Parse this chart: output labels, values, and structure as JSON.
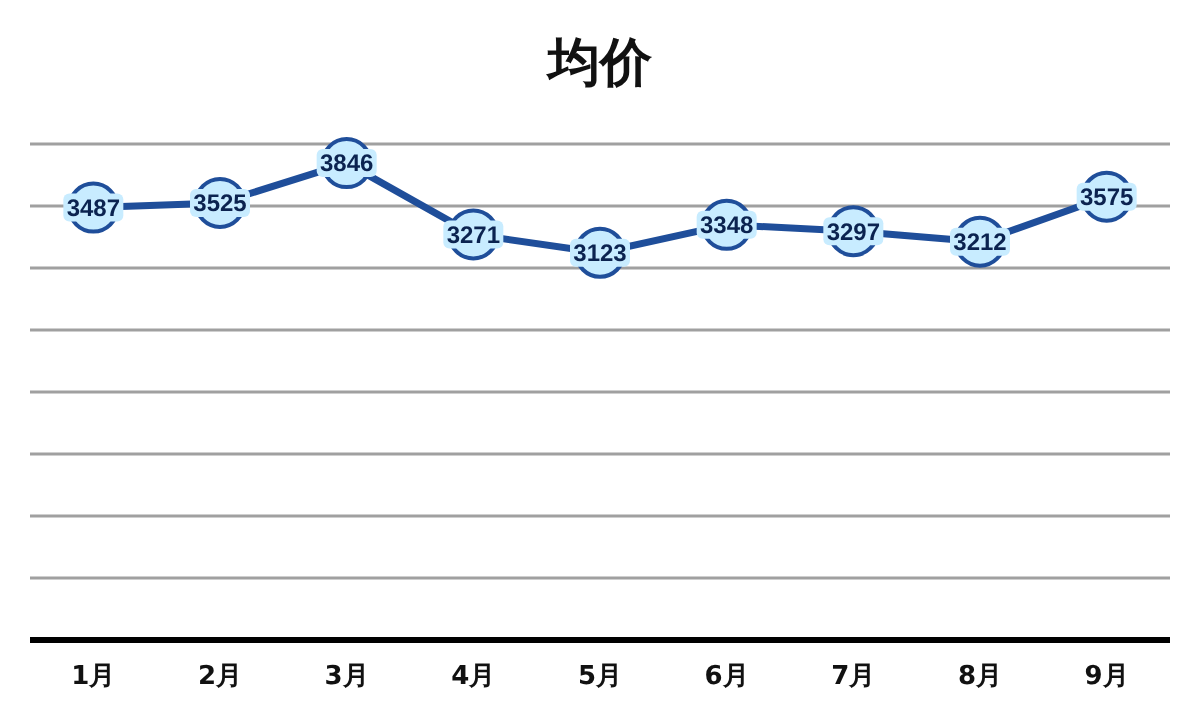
{
  "chart_data": {
    "type": "line",
    "title": "均价",
    "categories": [
      "1月",
      "2月",
      "3月",
      "4月",
      "5月",
      "6月",
      "7月",
      "8月",
      "9月"
    ],
    "series": [
      {
        "color": "#1f4e9a",
        "values": [
          3487,
          3525,
          3846,
          3271,
          3123,
          3348,
          3297,
          3212,
          3575
        ]
      }
    ],
    "ylim": [
      0,
      4000
    ],
    "yticks": [
      {
        "value": 0,
        "label": null
      },
      {
        "value": 500,
        "label": null
      },
      {
        "value": 1000,
        "label": null
      },
      {
        "value": 1500,
        "label": null
      },
      {
        "value": 2000,
        "label": null
      },
      {
        "value": 2500,
        "label": null
      },
      {
        "value": 3000,
        "label": null
      },
      {
        "value": 3500,
        "label": null
      },
      {
        "value": 4000,
        "label": null
      }
    ],
    "tick_labels": "x",
    "grid": "y",
    "marker": "circle",
    "data_labels": true
  }
}
